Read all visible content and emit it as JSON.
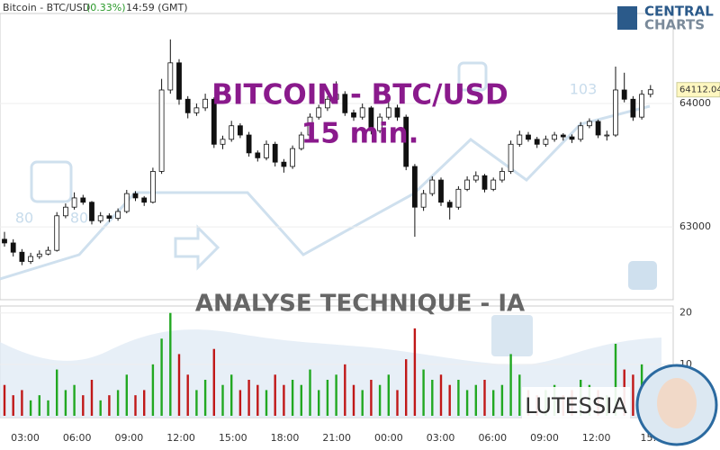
{
  "header": {
    "instrument": "Bitcoin - BTC/USD",
    "change": "(0.33%)",
    "time": "14:59 (GMT)"
  },
  "logo": {
    "line1": "CENTRAL",
    "line2": "CHARTS"
  },
  "watermark_numbers": [
    "103",
    "80",
    "80"
  ],
  "brand": "LUTESSIA",
  "chart_data": {
    "type": "candlestick",
    "title": "BITCOIN - BTC/USD",
    "subtitle": "15 min.",
    "annotation": "ANALYSE TECHNIQUE - IA",
    "ohlc": [
      [
        62900,
        62960,
        62840,
        62870
      ],
      [
        62870,
        62900,
        62760,
        62795
      ],
      [
        62795,
        62820,
        62690,
        62720
      ],
      [
        62720,
        62790,
        62700,
        62760
      ],
      [
        62760,
        62810,
        62740,
        62780
      ],
      [
        62780,
        62840,
        62770,
        62810
      ],
      [
        62810,
        63120,
        62800,
        63090
      ],
      [
        63090,
        63190,
        63070,
        63160
      ],
      [
        63160,
        63280,
        63140,
        63235
      ],
      [
        63235,
        63260,
        63180,
        63200
      ],
      [
        63200,
        63210,
        63020,
        63050
      ],
      [
        63050,
        63120,
        63030,
        63090
      ],
      [
        63090,
        63110,
        63040,
        63070
      ],
      [
        63070,
        63150,
        63050,
        63125
      ],
      [
        63125,
        63300,
        63110,
        63270
      ],
      [
        63270,
        63290,
        63210,
        63235
      ],
      [
        63235,
        63250,
        63170,
        63200
      ],
      [
        63200,
        63480,
        63190,
        63450
      ],
      [
        63450,
        64200,
        63430,
        64110
      ],
      [
        64110,
        64520,
        64080,
        64330
      ],
      [
        64330,
        64360,
        63990,
        64035
      ],
      [
        64035,
        64060,
        63880,
        63925
      ],
      [
        63925,
        64000,
        63900,
        63965
      ],
      [
        63965,
        64080,
        63940,
        64035
      ],
      [
        64035,
        64050,
        63640,
        63670
      ],
      [
        63670,
        63740,
        63630,
        63710
      ],
      [
        63710,
        63860,
        63690,
        63820
      ],
      [
        63820,
        63840,
        63720,
        63745
      ],
      [
        63745,
        63770,
        63570,
        63600
      ],
      [
        63600,
        63620,
        63530,
        63560
      ],
      [
        63560,
        63700,
        63540,
        63670
      ],
      [
        63670,
        63690,
        63490,
        63525
      ],
      [
        63525,
        63550,
        63440,
        63490
      ],
      [
        63490,
        63660,
        63470,
        63635
      ],
      [
        63635,
        63770,
        63620,
        63745
      ],
      [
        63745,
        63920,
        63730,
        63890
      ],
      [
        63890,
        63990,
        63870,
        63965
      ],
      [
        63965,
        64060,
        63940,
        64035
      ],
      [
        64035,
        64180,
        64010,
        64075
      ],
      [
        64075,
        64100,
        63900,
        63925
      ],
      [
        63925,
        63950,
        63860,
        63890
      ],
      [
        63890,
        64000,
        63870,
        63965
      ],
      [
        63965,
        63980,
        63750,
        63780
      ],
      [
        63780,
        63920,
        63760,
        63890
      ],
      [
        63890,
        64020,
        63870,
        63965
      ],
      [
        63965,
        63990,
        63860,
        63890
      ],
      [
        63890,
        63910,
        63460,
        63490
      ],
      [
        63490,
        63510,
        62920,
        63160
      ],
      [
        63160,
        63300,
        63130,
        63270
      ],
      [
        63270,
        63410,
        63250,
        63380
      ],
      [
        63380,
        63400,
        63170,
        63200
      ],
      [
        63200,
        63220,
        63060,
        63160
      ],
      [
        63160,
        63330,
        63140,
        63305
      ],
      [
        63305,
        63410,
        63290,
        63380
      ],
      [
        63380,
        63450,
        63360,
        63415
      ],
      [
        63415,
        63430,
        63280,
        63305
      ],
      [
        63305,
        63400,
        63290,
        63380
      ],
      [
        63380,
        63480,
        63360,
        63450
      ],
      [
        63450,
        63700,
        63430,
        63670
      ],
      [
        63670,
        63780,
        63650,
        63745
      ],
      [
        63745,
        63770,
        63690,
        63710
      ],
      [
        63710,
        63730,
        63640,
        63670
      ],
      [
        63670,
        63740,
        63650,
        63710
      ],
      [
        63710,
        63770,
        63690,
        63745
      ],
      [
        63745,
        63760,
        63700,
        63730
      ],
      [
        63730,
        63750,
        63680,
        63710
      ],
      [
        63710,
        63850,
        63690,
        63820
      ],
      [
        63820,
        63880,
        63800,
        63855
      ],
      [
        63855,
        63870,
        63720,
        63745
      ],
      [
        63745,
        63780,
        63700,
        63745
      ],
      [
        63745,
        64300,
        63730,
        64110
      ],
      [
        64110,
        64250,
        64010,
        64035
      ],
      [
        64035,
        64060,
        63860,
        63890
      ],
      [
        63890,
        64110,
        63870,
        64075
      ],
      [
        64075,
        64150,
        64050,
        64112.04
      ]
    ],
    "volume": [
      6,
      4,
      5,
      3,
      4,
      3,
      9,
      5,
      6,
      4,
      7,
      3,
      4,
      5,
      8,
      4,
      5,
      10,
      15,
      20,
      12,
      8,
      5,
      7,
      13,
      6,
      8,
      5,
      7,
      6,
      5,
      8,
      6,
      7,
      6,
      9,
      5,
      7,
      8,
      10,
      6,
      5,
      7,
      6,
      8,
      5,
      11,
      17,
      9,
      7,
      8,
      6,
      7,
      5,
      6,
      7,
      5,
      6,
      12,
      8,
      5,
      4,
      5,
      6,
      4,
      5,
      7,
      6,
      5,
      4,
      14,
      9,
      8,
      10,
      6
    ],
    "ylim": [
      62410,
      64730
    ],
    "yticks": [
      63000,
      64000
    ],
    "y2lim": [
      0,
      21
    ],
    "y2ticks": [
      10,
      20
    ],
    "x_labels": [
      "03:00",
      "06:00",
      "09:00",
      "12:00",
      "15:00",
      "18:00",
      "21:00",
      "00:00",
      "03:00",
      "06:00",
      "09:00",
      "12:00",
      "15:"
    ],
    "colors": {
      "up": "#ffffff",
      "down": "#111111",
      "volume_up": "#22a822",
      "volume_down": "#c01818",
      "title": "#8a1a8c"
    }
  }
}
